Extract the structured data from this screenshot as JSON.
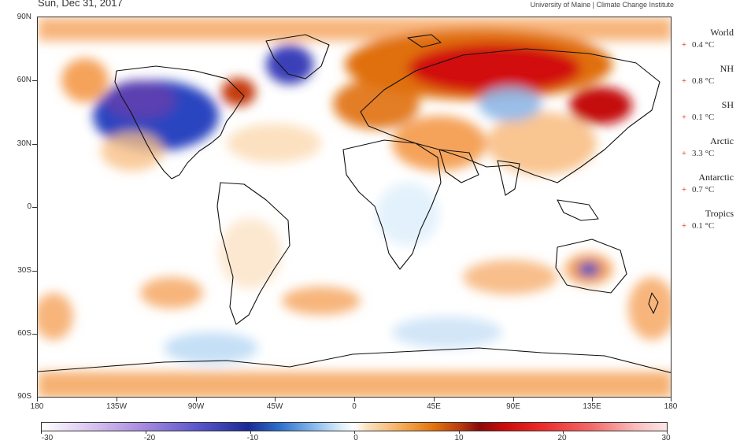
{
  "header": {
    "date": "Sun, Dec 31, 2017",
    "credit": "University of Maine | Climate Change Institute"
  },
  "map": {
    "lat_labels": [
      "90N",
      "60N",
      "30N",
      "0",
      "30S",
      "60S",
      "90S"
    ],
    "lon_labels": [
      "180",
      "135W",
      "90W",
      "45W",
      "0",
      "45E",
      "90E",
      "135E",
      "180"
    ],
    "colors": {
      "cold_extreme": "#5a3fb0",
      "cold": "#2a45c0",
      "cool": "#bfdcf5",
      "warm": "#f5a35a",
      "hot": "#e0700a",
      "very_hot": "#d10a0a"
    }
  },
  "stats": [
    {
      "label": "World",
      "sign": "+",
      "value": "0.4 °C"
    },
    {
      "label": "NH",
      "sign": "+",
      "value": "0.8 °C"
    },
    {
      "label": "SH",
      "sign": "+",
      "value": "0.1 °C"
    },
    {
      "label": "Arctic",
      "sign": "+",
      "value": "3.3 °C"
    },
    {
      "label": "Antarctic",
      "sign": "+",
      "value": "0.7 °C"
    },
    {
      "label": "Tropics",
      "sign": "+",
      "value": "0.1 °C"
    }
  ],
  "colorbar": {
    "labels": [
      "-30",
      "-20",
      "-10",
      "0",
      "10",
      "20",
      "30"
    ]
  }
}
